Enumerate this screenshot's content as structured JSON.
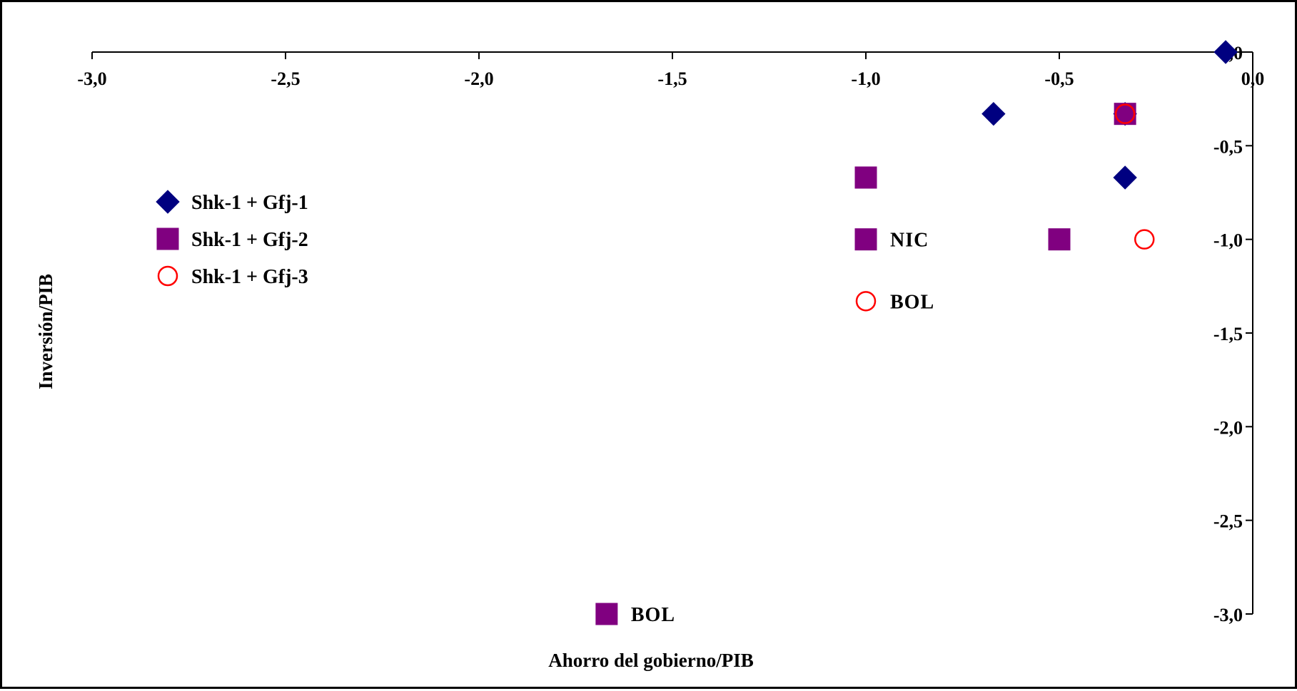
{
  "chart_data": {
    "type": "scatter",
    "title": "",
    "xlabel": "Ahorro del gobierno/PIB",
    "ylabel": "Inversión/PIB",
    "xlim": [
      -3.0,
      0.0
    ],
    "ylim": [
      -3.0,
      0.0
    ],
    "x_ticks": [
      "-3,0",
      "-2,5",
      "-2,0",
      "-1,5",
      "-1,0",
      "-0,5",
      "0,0"
    ],
    "y_ticks": [
      "0,0",
      "-0,5",
      "-1,0",
      "-1,5",
      "-2,0",
      "-2,5",
      "-3,0"
    ],
    "x_axis_position": "top",
    "y_axis_position": "right",
    "grid": false,
    "legend_position": "left",
    "series": [
      {
        "name": "Shk-1 + Gfj-1",
        "marker": "diamond",
        "color": "#000080",
        "points": [
          {
            "x": -0.07,
            "y": 0.0
          },
          {
            "x": -0.67,
            "y": -0.33
          },
          {
            "x": -0.33,
            "y": -0.33
          },
          {
            "x": -0.33,
            "y": -0.67
          }
        ]
      },
      {
        "name": "Shk-1 + Gfj-2",
        "marker": "square",
        "color": "#800080",
        "points": [
          {
            "x": -1.0,
            "y": -0.67
          },
          {
            "x": -1.0,
            "y": -1.0,
            "label": "NIC"
          },
          {
            "x": -0.5,
            "y": -1.0
          },
          {
            "x": -0.33,
            "y": -0.33
          },
          {
            "x": -1.67,
            "y": -3.0,
            "label": "BOL"
          }
        ]
      },
      {
        "name": "Shk-1 + Gfj-3",
        "marker": "circle-open",
        "color": "#ff0000",
        "points": [
          {
            "x": -0.33,
            "y": -0.33
          },
          {
            "x": -0.28,
            "y": -1.0
          },
          {
            "x": -1.0,
            "y": -1.33,
            "label": "BOL"
          }
        ]
      }
    ]
  }
}
